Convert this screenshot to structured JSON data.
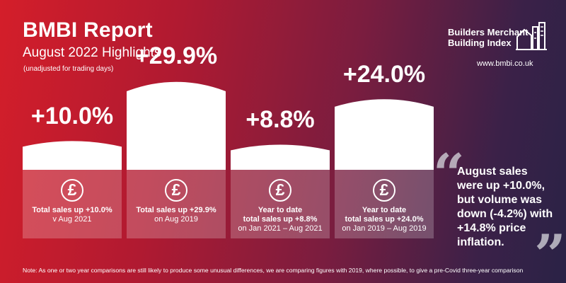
{
  "header": {
    "title": "BMBI Report",
    "subtitle": "August 2022 Highlights",
    "note": "(unadjusted for trading days)"
  },
  "brand": {
    "logo_line1": "Builders Merchant",
    "logo_line2": "Building Index",
    "website": "www.bmbi.co.uk",
    "logo_icon": "building-skyline-icon"
  },
  "chart_data": {
    "type": "bar",
    "categories": [
      "Total sales up +10.0% v Aug 2021",
      "Total sales up +29.9% on Aug 2019",
      "Year to date total sales up +8.8% on Jan 2021 – Aug 2021",
      "Year to date total sales up +24.0% on Jan 2019 – Aug 2019"
    ],
    "values": [
      10.0,
      29.9,
      8.8,
      24.0
    ],
    "data_labels": [
      "+10.0%",
      "+29.9%",
      "+8.8%",
      "+24.0%"
    ],
    "ylim": [
      0,
      30
    ],
    "grid": false,
    "unit": "%"
  },
  "panels": [
    {
      "icon": "pound-icon",
      "symbol": "£",
      "line1": "Total sales up +10.0%",
      "line2": "v Aug 2021",
      "line3": ""
    },
    {
      "icon": "pound-icon",
      "symbol": "£",
      "line1": "Total sales up +29.9%",
      "line2": "on Aug 2019",
      "line3": ""
    },
    {
      "icon": "pound-icon",
      "symbol": "£",
      "line1": "Year to date",
      "line2": "total sales up +8.8%",
      "line3": "on Jan 2021 – Aug 2021"
    },
    {
      "icon": "pound-icon",
      "symbol": "£",
      "line1": "Year to date",
      "line2": "total sales up +24.0%",
      "line3": "on Jan 2019 – Aug 2019"
    }
  ],
  "quote": {
    "open_mark": "“",
    "close_mark": "”",
    "text": "August sales were up +10.0%, but volume was down (-4.2%) with +14.8% price inflation."
  },
  "footnote": "Note: As one or two year comparisons are still likely to produce some unusual differences, we are comparing figures with 2019, where possible, to give a pre-Covid three-year comparison",
  "colors": {
    "gradient_start": "#d41e2a",
    "gradient_end": "#2a2246",
    "bar": "#ffffff",
    "panel": "rgba(255,255,255,0.22)"
  }
}
